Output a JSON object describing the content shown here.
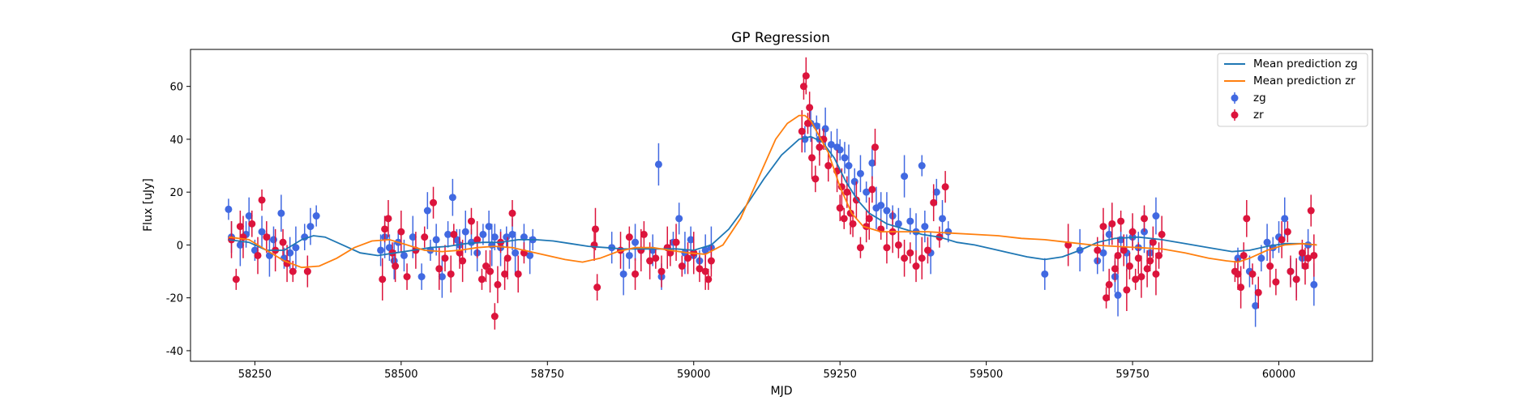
{
  "chart_data": {
    "type": "scatter",
    "title": "GP Regression",
    "xlabel": "MJD",
    "ylabel": "Flux [uJy]",
    "xlim": [
      58140,
      60160
    ],
    "ylim": [
      -44,
      74
    ],
    "xticks": [
      58250,
      58500,
      58750,
      59000,
      59250,
      59500,
      59750,
      60000
    ],
    "yticks": [
      -40,
      -20,
      0,
      20,
      40,
      60
    ],
    "grid": false,
    "legend_position": "top-right",
    "lines": [
      {
        "name": "Mean prediction zg",
        "color": "#1f77b4",
        "x": [
          58205,
          58240,
          58270,
          58300,
          58330,
          58350,
          58370,
          58400,
          58430,
          58460,
          58490,
          58520,
          58550,
          58580,
          58610,
          58640,
          58670,
          58700,
          58730,
          58760,
          58790,
          58820,
          58850,
          58880,
          58910,
          58940,
          58970,
          59000,
          59030,
          59060,
          59090,
          59120,
          59150,
          59180,
          59200,
          59220,
          59240,
          59260,
          59280,
          59300,
          59330,
          59360,
          59390,
          59420,
          59450,
          59480,
          59510,
          59540,
          59570,
          59600,
          59630,
          59660,
          59690,
          59720,
          59760,
          59800,
          59840,
          59880,
          59920,
          59950,
          59980,
          60010,
          60040,
          60065
        ],
        "y": [
          2,
          1,
          -2,
          -2,
          2,
          3.5,
          3,
          0,
          -3,
          -4,
          -3,
          -2,
          -1,
          -0.5,
          0.5,
          1,
          1,
          2,
          2,
          1.5,
          0.5,
          -0.5,
          -1,
          -1.5,
          -1.5,
          -1.5,
          -1.5,
          -2,
          0,
          6,
          15,
          25,
          34,
          40,
          41,
          39,
          33,
          24,
          17,
          12,
          8,
          6,
          4,
          3,
          1,
          0,
          -1.5,
          -3,
          -4.5,
          -5.5,
          -4.5,
          -2,
          1,
          2.5,
          3,
          2,
          0.5,
          -1,
          -2.5,
          -2,
          -0.5,
          0.5,
          0.5,
          0
        ]
      },
      {
        "name": "Mean prediction zr",
        "color": "#ff7f0e",
        "x": [
          58205,
          58240,
          58270,
          58300,
          58330,
          58360,
          58390,
          58420,
          58450,
          58480,
          58510,
          58540,
          58570,
          58600,
          58630,
          58660,
          58690,
          58720,
          58750,
          58780,
          58810,
          58840,
          58870,
          58900,
          58930,
          58960,
          58990,
          59020,
          59050,
          59080,
          59110,
          59140,
          59160,
          59180,
          59190,
          59200,
          59210,
          59230,
          59250,
          59270,
          59290,
          59320,
          59360,
          59400,
          59440,
          59480,
          59520,
          59560,
          59600,
          59640,
          59680,
          59720,
          59760,
          59800,
          59840,
          59880,
          59910,
          59930,
          59950,
          59980,
          60010,
          60040,
          60065
        ],
        "y": [
          3,
          2,
          -2,
          -6,
          -8.5,
          -8,
          -5,
          -1,
          1.5,
          2,
          0,
          -2,
          -2.5,
          -2,
          -1,
          -0.5,
          -1,
          -2.5,
          -4,
          -5.5,
          -6.5,
          -5,
          -2.5,
          -1,
          -1,
          -2,
          -3,
          -3.5,
          0,
          10,
          25,
          40,
          46,
          49,
          49,
          47,
          43,
          35,
          22,
          12,
          7,
          5,
          5,
          5,
          4.5,
          4,
          3.5,
          2.5,
          2,
          1,
          0,
          -0.5,
          -1,
          -1.5,
          -3,
          -5,
          -6,
          -6.5,
          -5,
          -2,
          0,
          0.5,
          0
        ]
      }
    ],
    "series": [
      {
        "name": "zg",
        "color": "#4169e1",
        "x": [
          58205,
          58210,
          58225,
          58235,
          58240,
          58250,
          58262,
          58275,
          58282,
          58295,
          58300,
          58310,
          58320,
          58335,
          58345,
          58355,
          58465,
          58472,
          58480,
          58488,
          58495,
          58505,
          58520,
          58535,
          58545,
          58550,
          58560,
          58570,
          58580,
          58588,
          58595,
          58600,
          58610,
          58620,
          58630,
          58640,
          58650,
          58655,
          58660,
          58670,
          58680,
          58690,
          58695,
          58710,
          58720,
          58725,
          58860,
          58880,
          58890,
          58900,
          58910,
          58930,
          58940,
          58945,
          58955,
          58965,
          58975,
          58985,
          58995,
          59000,
          59010,
          59020,
          59030,
          59190,
          59200,
          59210,
          59215,
          59225,
          59235,
          59245,
          59250,
          59258,
          59265,
          59275,
          59285,
          59295,
          59305,
          59312,
          59320,
          59330,
          59340,
          59350,
          59360,
          59370,
          59380,
          59390,
          59395,
          59405,
          59415,
          59425,
          59435,
          59600,
          59660,
          59690,
          59700,
          59710,
          59720,
          59725,
          59730,
          59740,
          59750,
          59760,
          59770,
          59780,
          59790,
          59930,
          59950,
          59960,
          59970,
          59980,
          59990,
          60000,
          60010,
          60020,
          60030,
          60040,
          60050,
          60060
        ],
        "y": [
          13.5,
          3,
          0,
          4,
          11,
          -2,
          5,
          -4,
          2,
          12,
          -5,
          -3,
          -1,
          3,
          7,
          11,
          -2,
          3,
          -1,
          -6,
          1,
          -4,
          3,
          -12,
          13,
          -2,
          2,
          -12,
          4,
          18,
          2,
          0,
          5,
          1,
          -3,
          4,
          7,
          0,
          3,
          -1,
          3,
          4,
          -3,
          3,
          -4,
          2,
          -1,
          -11,
          -4,
          1,
          -2,
          -2,
          30.5,
          -12,
          -1,
          1,
          10,
          -3,
          2,
          -4,
          -6,
          -2,
          -1,
          40,
          46,
          45,
          40,
          44,
          38,
          37,
          36,
          33,
          30,
          24,
          27,
          20,
          31,
          14,
          15,
          13,
          11,
          8,
          26,
          9,
          5,
          30,
          7,
          -3,
          20,
          10,
          5,
          -11,
          -2,
          -6,
          -3,
          4,
          -12,
          -19,
          2,
          -3,
          3,
          -1,
          5,
          -3,
          11,
          -5,
          -10,
          -23,
          -5,
          1,
          -1,
          3,
          10,
          -10,
          -13,
          -5,
          0,
          -15
        ]
      },
      {
        "name": "zr",
        "color": "#dc143c",
        "x": [
          58210,
          58218,
          58225,
          58230,
          58245,
          58255,
          58262,
          58270,
          58285,
          58298,
          58305,
          58315,
          58340,
          58468,
          58472,
          58478,
          58485,
          58490,
          58500,
          58510,
          58525,
          58540,
          58555,
          58565,
          58575,
          58585,
          58590,
          58600,
          58605,
          58620,
          58630,
          58638,
          58645,
          58652,
          58660,
          58665,
          58670,
          58677,
          58682,
          58690,
          58700,
          58710,
          58830,
          58832,
          58835,
          58875,
          58890,
          58900,
          58910,
          58915,
          58925,
          58935,
          58945,
          58955,
          58960,
          58970,
          58980,
          58990,
          59000,
          59010,
          59020,
          59025,
          59030,
          59185,
          59188,
          59192,
          59195,
          59198,
          59202,
          59208,
          59215,
          59222,
          59230,
          59245,
          59250,
          59253,
          59257,
          59262,
          59268,
          59272,
          59278,
          59285,
          59295,
          59300,
          59305,
          59310,
          59320,
          59330,
          59340,
          59350,
          59360,
          59370,
          59380,
          59390,
          59400,
          59410,
          59420,
          59430,
          59640,
          59690,
          59700,
          59705,
          59710,
          59715,
          59720,
          59725,
          59730,
          59735,
          59740,
          59745,
          59750,
          59755,
          59760,
          59765,
          59770,
          59775,
          59780,
          59785,
          59790,
          59795,
          59800,
          59925,
          59930,
          59935,
          59940,
          59945,
          59955,
          59965,
          59985,
          59995,
          60005,
          60015,
          60020,
          60030,
          60040,
          60045,
          60050,
          60055,
          60060
        ],
        "y": [
          2,
          -13,
          7,
          3,
          8,
          -4,
          17,
          3,
          -2,
          1,
          -7,
          -10,
          -10,
          -13,
          6,
          10,
          -3,
          -8,
          5,
          -12,
          -2,
          3,
          16,
          -9,
          -5,
          -11,
          4,
          -3,
          -6,
          9,
          2,
          -13,
          -8,
          -10,
          -27,
          -15,
          1,
          -11,
          -5,
          12,
          -11,
          -3,
          0,
          6,
          -16,
          -2,
          3,
          -11,
          -2,
          4,
          -6,
          -5,
          -10,
          -1,
          -3,
          1,
          -8,
          -5,
          -3,
          -9,
          -10,
          -13,
          -6,
          43,
          60,
          64,
          46,
          52,
          33,
          25,
          37,
          40,
          30,
          28,
          14,
          22,
          10,
          20,
          12,
          8,
          17,
          -1,
          7,
          10,
          21,
          37,
          6,
          -1,
          5,
          0,
          -5,
          -3,
          -8,
          -5,
          -2,
          16,
          3,
          22,
          0,
          -2,
          7,
          -20,
          -15,
          8,
          -9,
          -4,
          9,
          -2,
          -17,
          -8,
          5,
          -13,
          -5,
          -12,
          10,
          -9,
          -6,
          1,
          -11,
          -4,
          4,
          -10,
          -11,
          -16,
          -4,
          10,
          -11,
          -18,
          -8,
          -14,
          2,
          5,
          -10,
          -13,
          -3,
          -8,
          -5,
          13,
          -4
        ]
      }
    ]
  }
}
